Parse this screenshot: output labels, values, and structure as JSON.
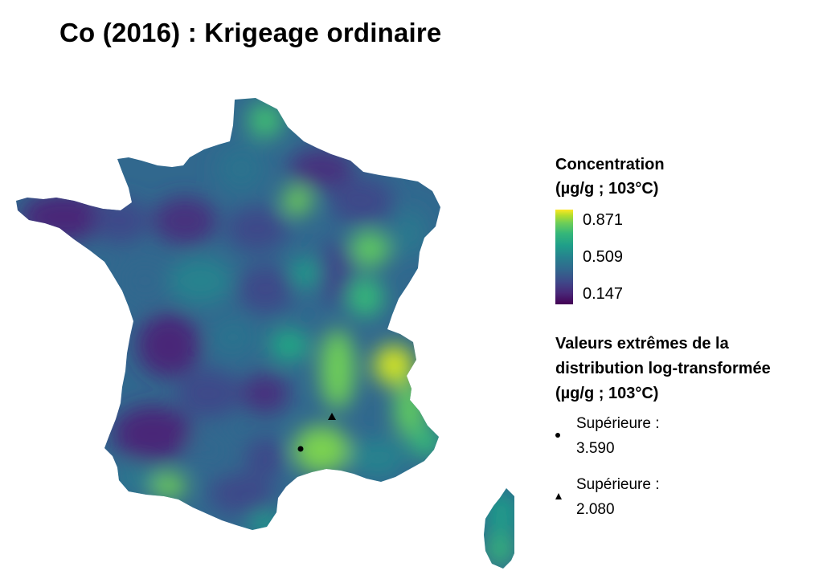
{
  "title": "Co (2016) : Krigeage ordinaire",
  "legend": {
    "colorbar_title_line1": "Concentration",
    "colorbar_title_line2": "(µg/g ; 103°C)",
    "ticks": [
      "0.871",
      "0.509",
      "0.147"
    ],
    "range": [
      0.147,
      0.871
    ],
    "palette": "viridis",
    "extremes_title_line1": "Valeurs extrêmes de la",
    "extremes_title_line2": "distribution log-transformée",
    "extremes_title_line3": "(µg/g ; 103°C)",
    "extremes": [
      {
        "symbol": "circle",
        "label": "Supérieure :",
        "value": "3.590"
      },
      {
        "symbol": "triangle",
        "label": "Supérieure :",
        "value": "2.080"
      }
    ]
  }
}
